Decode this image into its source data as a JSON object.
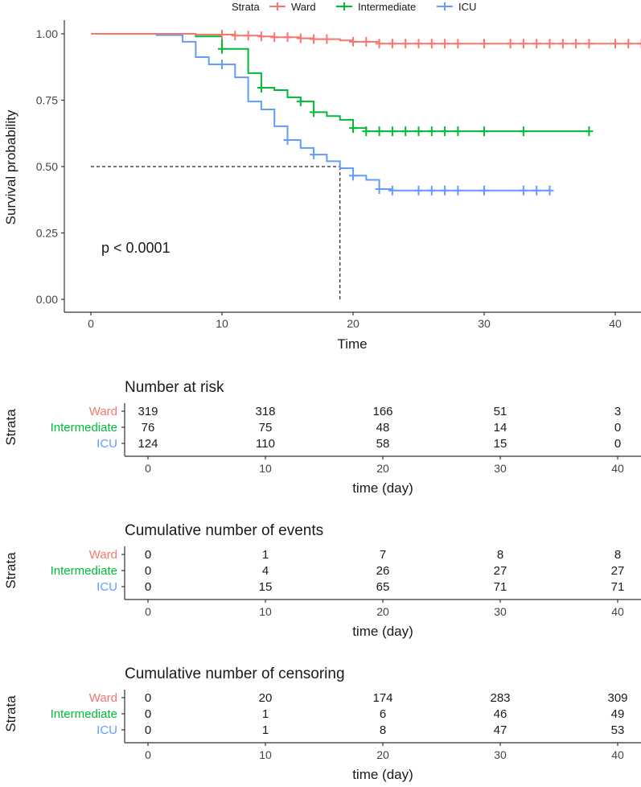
{
  "colors": {
    "Ward": "#F8766D",
    "Intermediate": "#00BA38",
    "ICU": "#619CFF",
    "axis": "#333333",
    "text": "#1a1a1a"
  },
  "chart_data": [
    {
      "type": "line",
      "subtype": "kaplan-meier",
      "title": "",
      "xlabel": "Time",
      "ylabel": "Survival probability",
      "xlim": [
        0,
        42
      ],
      "ylim": [
        0,
        1
      ],
      "xticks": [
        "0",
        "10",
        "20",
        "30",
        "40"
      ],
      "xtick_values": [
        0,
        10,
        20,
        30,
        40
      ],
      "yticks": [
        "0.00",
        "0.25",
        "0.50",
        "0.75",
        "1.00"
      ],
      "ytick_values": [
        0,
        0.25,
        0.5,
        0.75,
        1
      ],
      "grid": false,
      "legend": {
        "title": "Strata",
        "placement": "top",
        "entries": [
          "Ward",
          "Intermediate",
          "ICU"
        ]
      },
      "annotation": "p < 0.0001",
      "median_line": {
        "survival": 0.5,
        "time": 19
      },
      "series": [
        {
          "name": "Ward",
          "steps": [
            [
              0,
              1.0
            ],
            [
              8,
              0.997
            ],
            [
              11,
              0.993
            ],
            [
              13,
              0.99
            ],
            [
              14,
              0.987
            ],
            [
              16,
              0.983
            ],
            [
              17,
              0.98
            ],
            [
              19,
              0.975
            ],
            [
              20,
              0.97
            ],
            [
              22,
              0.963
            ],
            [
              42,
              0.963
            ]
          ],
          "censor_times": [
            10,
            11,
            12,
            13,
            14,
            15,
            16,
            17,
            18,
            20,
            21,
            22,
            23,
            24,
            25,
            26,
            27,
            28,
            30,
            32,
            33,
            34,
            35,
            36,
            37,
            38,
            40,
            41,
            42
          ]
        },
        {
          "name": "Intermediate",
          "steps": [
            [
              0,
              1.0
            ],
            [
              8,
              0.99
            ],
            [
              10,
              0.943
            ],
            [
              12,
              0.852
            ],
            [
              13,
              0.797
            ],
            [
              14,
              0.788
            ],
            [
              15,
              0.761
            ],
            [
              16,
              0.745
            ],
            [
              17,
              0.705
            ],
            [
              18,
              0.69
            ],
            [
              19,
              0.676
            ],
            [
              20,
              0.645
            ],
            [
              21,
              0.633
            ],
            [
              38,
              0.633
            ]
          ],
          "censor_times": [
            10,
            13,
            16,
            17,
            20,
            21,
            22,
            23,
            24,
            25,
            26,
            27,
            28,
            30,
            33,
            38
          ]
        },
        {
          "name": "ICU",
          "steps": [
            [
              0,
              1.0
            ],
            [
              5,
              0.995
            ],
            [
              7,
              0.97
            ],
            [
              8,
              0.912
            ],
            [
              9,
              0.885
            ],
            [
              11,
              0.836
            ],
            [
              12,
              0.745
            ],
            [
              13,
              0.715
            ],
            [
              14,
              0.652
            ],
            [
              15,
              0.6
            ],
            [
              16,
              0.57
            ],
            [
              17,
              0.545
            ],
            [
              18,
              0.52
            ],
            [
              19,
              0.494
            ],
            [
              20,
              0.466
            ],
            [
              21,
              0.45
            ],
            [
              22,
              0.415
            ],
            [
              23,
              0.41
            ],
            [
              35,
              0.41
            ]
          ],
          "censor_times": [
            10,
            15,
            17,
            20,
            22,
            23,
            25,
            26,
            27,
            28,
            30,
            33,
            34,
            35
          ]
        }
      ]
    },
    {
      "type": "table",
      "title": "Number at risk",
      "ylabel": "Strata",
      "xlabel": "time (day)",
      "xticks": [
        "0",
        "10",
        "20",
        "30",
        "40"
      ],
      "times": [
        0,
        10,
        20,
        30,
        40
      ],
      "rows": [
        {
          "name": "Ward",
          "values": [
            "319",
            "318",
            "166",
            "51",
            "3"
          ]
        },
        {
          "name": "Intermediate",
          "values": [
            "76",
            "75",
            "48",
            "14",
            "0"
          ]
        },
        {
          "name": "ICU",
          "values": [
            "124",
            "110",
            "58",
            "15",
            "0"
          ]
        }
      ]
    },
    {
      "type": "table",
      "title": "Cumulative number of events",
      "ylabel": "Strata",
      "xlabel": "time (day)",
      "xticks": [
        "0",
        "10",
        "20",
        "30",
        "40"
      ],
      "times": [
        0,
        10,
        20,
        30,
        40
      ],
      "rows": [
        {
          "name": "Ward",
          "values": [
            "0",
            "1",
            "7",
            "8",
            "8"
          ]
        },
        {
          "name": "Intermediate",
          "values": [
            "0",
            "4",
            "26",
            "27",
            "27"
          ]
        },
        {
          "name": "ICU",
          "values": [
            "0",
            "15",
            "65",
            "71",
            "71"
          ]
        }
      ]
    },
    {
      "type": "table",
      "title": "Cumulative number of censoring",
      "ylabel": "Strata",
      "xlabel": "time (day)",
      "xticks": [
        "0",
        "10",
        "20",
        "30",
        "40"
      ],
      "times": [
        0,
        10,
        20,
        30,
        40
      ],
      "rows": [
        {
          "name": "Ward",
          "values": [
            "0",
            "20",
            "174",
            "283",
            "309"
          ]
        },
        {
          "name": "Intermediate",
          "values": [
            "0",
            "1",
            "6",
            "46",
            "49"
          ]
        },
        {
          "name": "ICU",
          "values": [
            "0",
            "1",
            "8",
            "47",
            "53"
          ]
        }
      ]
    }
  ]
}
